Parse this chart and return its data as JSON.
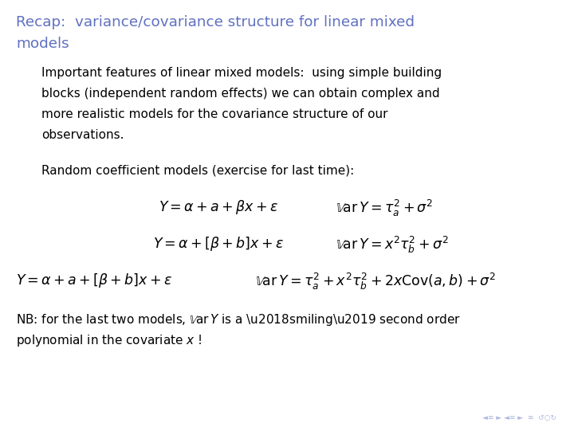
{
  "title_line1": "Recap:  variance/covariance structure for linear mixed",
  "title_line2": "models",
  "title_color": "#6070c0",
  "bg_color": "#ffffff",
  "body_color": "#000000",
  "para1_lines": [
    "Important features of linear mixed models:  using simple building",
    "blocks (independent random effects) we can obtain complex and",
    "more realistic models for the covariance structure of our",
    "observations."
  ],
  "para2": "Random coefficient models (exercise for last time):",
  "nb_line1": "NB: for the last two models, $\\mathbb{V}\\mathrm{ar}\\,Y$ is a ‘smiling’ second order",
  "nb_line2": "polynomial in the covariate $x$ !"
}
